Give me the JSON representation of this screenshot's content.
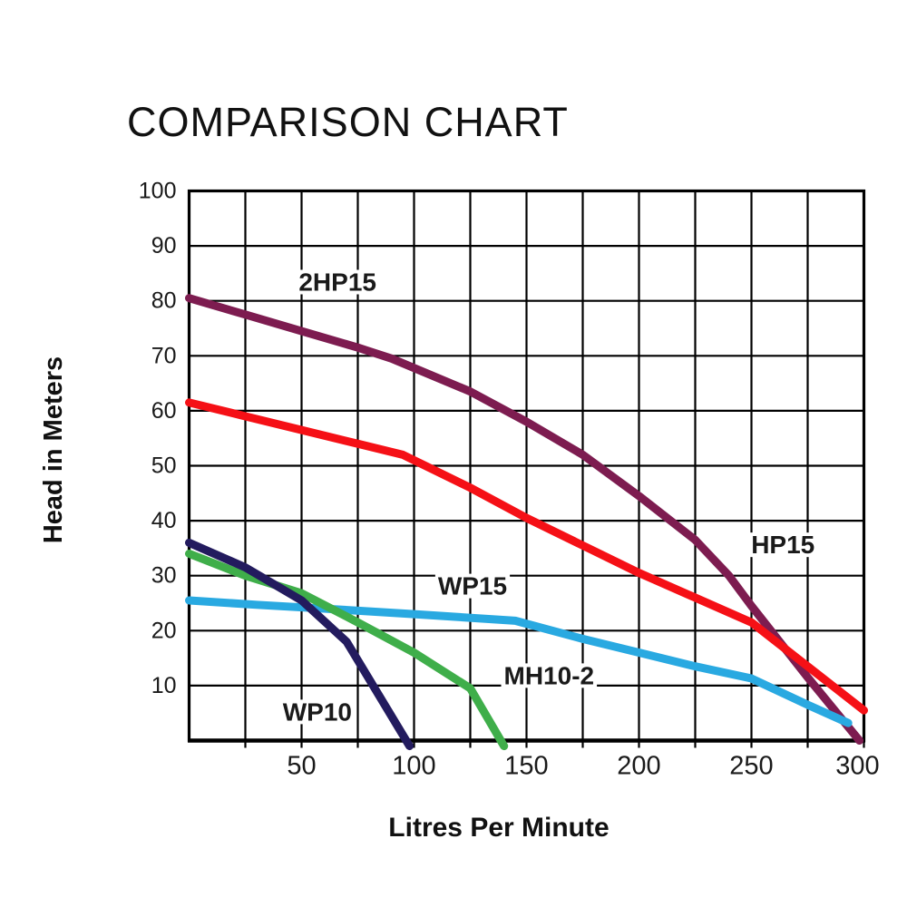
{
  "title": "COMPARISON CHART",
  "chart_data": {
    "type": "line",
    "title": "COMPARISON CHART",
    "xlabel": "Litres Per Minute",
    "ylabel": "Head in Meters",
    "xlim": [
      0,
      300
    ],
    "ylim": [
      0,
      100
    ],
    "x_ticks": [
      50,
      100,
      150,
      200,
      250,
      300
    ],
    "y_ticks": [
      10,
      20,
      30,
      40,
      50,
      60,
      70,
      80,
      90,
      100
    ],
    "grid": {
      "on": true,
      "x_step": 25,
      "y_step": 10,
      "color": "#000000"
    },
    "legend_position": "inline-labels",
    "line_width": 9,
    "text_color": "#1a1a1a",
    "series": [
      {
        "name": "2HP15",
        "color": "#7d1c50",
        "label_pos": {
          "x": 66,
          "y": 83.5
        },
        "points": [
          [
            0,
            80.5
          ],
          [
            25,
            77.5
          ],
          [
            50,
            74.5
          ],
          [
            75,
            71.5
          ],
          [
            90,
            69.5
          ],
          [
            125,
            63.5
          ],
          [
            150,
            58
          ],
          [
            175,
            52
          ],
          [
            200,
            44.5
          ],
          [
            225,
            36.5
          ],
          [
            240,
            30
          ],
          [
            250,
            24.5
          ],
          [
            275,
            11.5
          ],
          [
            298,
            0
          ]
        ]
      },
      {
        "name": "HP15",
        "color": "#f51016",
        "label_pos": {
          "x": 264,
          "y": 35.7
        },
        "points": [
          [
            0,
            61.5
          ],
          [
            25,
            59
          ],
          [
            50,
            56.5
          ],
          [
            75,
            54
          ],
          [
            95,
            52
          ],
          [
            125,
            46
          ],
          [
            150,
            40.5
          ],
          [
            175,
            35.5
          ],
          [
            200,
            30.5
          ],
          [
            250,
            21.5
          ],
          [
            275,
            13.5
          ],
          [
            300,
            5.5
          ]
        ]
      },
      {
        "name": "WP15",
        "color": "#29a9e1",
        "label_pos": {
          "x": 126,
          "y": 28.2
        },
        "points": [
          [
            0,
            25.5
          ],
          [
            30,
            24.7
          ],
          [
            60,
            24
          ],
          [
            100,
            23
          ],
          [
            145,
            21.8
          ],
          [
            175,
            18.5
          ],
          [
            200,
            16
          ],
          [
            225,
            13.5
          ],
          [
            250,
            11.3
          ],
          [
            275,
            6.5
          ],
          [
            293,
            3.2
          ]
        ]
      },
      {
        "name": "MH10-2",
        "color": "#3fae4a",
        "label_pos": {
          "x": 160,
          "y": 11.9
        },
        "points": [
          [
            0,
            34
          ],
          [
            25,
            30
          ],
          [
            50,
            26.8
          ],
          [
            75,
            21.5
          ],
          [
            100,
            16
          ],
          [
            125,
            9.5
          ],
          [
            140,
            -1
          ]
        ]
      },
      {
        "name": "WP10",
        "color": "#231b5e",
        "label_pos": {
          "x": 57,
          "y": 5.3
        },
        "points": [
          [
            0,
            36
          ],
          [
            25,
            31.5
          ],
          [
            50,
            25.5
          ],
          [
            70,
            18
          ],
          [
            98,
            -1
          ]
        ]
      }
    ]
  }
}
